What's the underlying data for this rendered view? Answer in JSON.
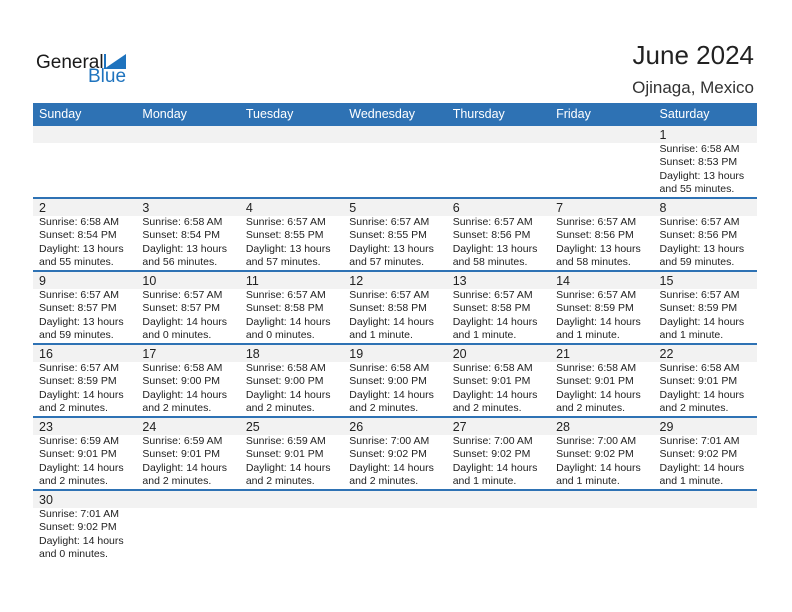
{
  "logo": {
    "line1": "General",
    "line2": "Blue",
    "accent": "#1e73be"
  },
  "title": "June 2024",
  "location": "Ojinaga, Mexico",
  "header_color": "#2e72b4",
  "weekdays": [
    "Sunday",
    "Monday",
    "Tuesday",
    "Wednesday",
    "Thursday",
    "Friday",
    "Saturday"
  ],
  "weeks": [
    [
      null,
      null,
      null,
      null,
      null,
      null,
      {
        "day": "1",
        "sunrise": "Sunrise: 6:58 AM",
        "sunset": "Sunset: 8:53 PM",
        "daylight": "Daylight: 13 hours",
        "minutes": "and 55 minutes."
      }
    ],
    [
      {
        "day": "2",
        "sunrise": "Sunrise: 6:58 AM",
        "sunset": "Sunset: 8:54 PM",
        "daylight": "Daylight: 13 hours",
        "minutes": "and 55 minutes."
      },
      {
        "day": "3",
        "sunrise": "Sunrise: 6:58 AM",
        "sunset": "Sunset: 8:54 PM",
        "daylight": "Daylight: 13 hours",
        "minutes": "and 56 minutes."
      },
      {
        "day": "4",
        "sunrise": "Sunrise: 6:57 AM",
        "sunset": "Sunset: 8:55 PM",
        "daylight": "Daylight: 13 hours",
        "minutes": "and 57 minutes."
      },
      {
        "day": "5",
        "sunrise": "Sunrise: 6:57 AM",
        "sunset": "Sunset: 8:55 PM",
        "daylight": "Daylight: 13 hours",
        "minutes": "and 57 minutes."
      },
      {
        "day": "6",
        "sunrise": "Sunrise: 6:57 AM",
        "sunset": "Sunset: 8:56 PM",
        "daylight": "Daylight: 13 hours",
        "minutes": "and 58 minutes."
      },
      {
        "day": "7",
        "sunrise": "Sunrise: 6:57 AM",
        "sunset": "Sunset: 8:56 PM",
        "daylight": "Daylight: 13 hours",
        "minutes": "and 58 minutes."
      },
      {
        "day": "8",
        "sunrise": "Sunrise: 6:57 AM",
        "sunset": "Sunset: 8:56 PM",
        "daylight": "Daylight: 13 hours",
        "minutes": "and 59 minutes."
      }
    ],
    [
      {
        "day": "9",
        "sunrise": "Sunrise: 6:57 AM",
        "sunset": "Sunset: 8:57 PM",
        "daylight": "Daylight: 13 hours",
        "minutes": "and 59 minutes."
      },
      {
        "day": "10",
        "sunrise": "Sunrise: 6:57 AM",
        "sunset": "Sunset: 8:57 PM",
        "daylight": "Daylight: 14 hours",
        "minutes": "and 0 minutes."
      },
      {
        "day": "11",
        "sunrise": "Sunrise: 6:57 AM",
        "sunset": "Sunset: 8:58 PM",
        "daylight": "Daylight: 14 hours",
        "minutes": "and 0 minutes."
      },
      {
        "day": "12",
        "sunrise": "Sunrise: 6:57 AM",
        "sunset": "Sunset: 8:58 PM",
        "daylight": "Daylight: 14 hours",
        "minutes": "and 1 minute."
      },
      {
        "day": "13",
        "sunrise": "Sunrise: 6:57 AM",
        "sunset": "Sunset: 8:58 PM",
        "daylight": "Daylight: 14 hours",
        "minutes": "and 1 minute."
      },
      {
        "day": "14",
        "sunrise": "Sunrise: 6:57 AM",
        "sunset": "Sunset: 8:59 PM",
        "daylight": "Daylight: 14 hours",
        "minutes": "and 1 minute."
      },
      {
        "day": "15",
        "sunrise": "Sunrise: 6:57 AM",
        "sunset": "Sunset: 8:59 PM",
        "daylight": "Daylight: 14 hours",
        "minutes": "and 1 minute."
      }
    ],
    [
      {
        "day": "16",
        "sunrise": "Sunrise: 6:57 AM",
        "sunset": "Sunset: 8:59 PM",
        "daylight": "Daylight: 14 hours",
        "minutes": "and 2 minutes."
      },
      {
        "day": "17",
        "sunrise": "Sunrise: 6:58 AM",
        "sunset": "Sunset: 9:00 PM",
        "daylight": "Daylight: 14 hours",
        "minutes": "and 2 minutes."
      },
      {
        "day": "18",
        "sunrise": "Sunrise: 6:58 AM",
        "sunset": "Sunset: 9:00 PM",
        "daylight": "Daylight: 14 hours",
        "minutes": "and 2 minutes."
      },
      {
        "day": "19",
        "sunrise": "Sunrise: 6:58 AM",
        "sunset": "Sunset: 9:00 PM",
        "daylight": "Daylight: 14 hours",
        "minutes": "and 2 minutes."
      },
      {
        "day": "20",
        "sunrise": "Sunrise: 6:58 AM",
        "sunset": "Sunset: 9:01 PM",
        "daylight": "Daylight: 14 hours",
        "minutes": "and 2 minutes."
      },
      {
        "day": "21",
        "sunrise": "Sunrise: 6:58 AM",
        "sunset": "Sunset: 9:01 PM",
        "daylight": "Daylight: 14 hours",
        "minutes": "and 2 minutes."
      },
      {
        "day": "22",
        "sunrise": "Sunrise: 6:58 AM",
        "sunset": "Sunset: 9:01 PM",
        "daylight": "Daylight: 14 hours",
        "minutes": "and 2 minutes."
      }
    ],
    [
      {
        "day": "23",
        "sunrise": "Sunrise: 6:59 AM",
        "sunset": "Sunset: 9:01 PM",
        "daylight": "Daylight: 14 hours",
        "minutes": "and 2 minutes."
      },
      {
        "day": "24",
        "sunrise": "Sunrise: 6:59 AM",
        "sunset": "Sunset: 9:01 PM",
        "daylight": "Daylight: 14 hours",
        "minutes": "and 2 minutes."
      },
      {
        "day": "25",
        "sunrise": "Sunrise: 6:59 AM",
        "sunset": "Sunset: 9:01 PM",
        "daylight": "Daylight: 14 hours",
        "minutes": "and 2 minutes."
      },
      {
        "day": "26",
        "sunrise": "Sunrise: 7:00 AM",
        "sunset": "Sunset: 9:02 PM",
        "daylight": "Daylight: 14 hours",
        "minutes": "and 2 minutes."
      },
      {
        "day": "27",
        "sunrise": "Sunrise: 7:00 AM",
        "sunset": "Sunset: 9:02 PM",
        "daylight": "Daylight: 14 hours",
        "minutes": "and 1 minute."
      },
      {
        "day": "28",
        "sunrise": "Sunrise: 7:00 AM",
        "sunset": "Sunset: 9:02 PM",
        "daylight": "Daylight: 14 hours",
        "minutes": "and 1 minute."
      },
      {
        "day": "29",
        "sunrise": "Sunrise: 7:01 AM",
        "sunset": "Sunset: 9:02 PM",
        "daylight": "Daylight: 14 hours",
        "minutes": "and 1 minute."
      }
    ],
    [
      {
        "day": "30",
        "sunrise": "Sunrise: 7:01 AM",
        "sunset": "Sunset: 9:02 PM",
        "daylight": "Daylight: 14 hours",
        "minutes": "and 0 minutes."
      }
    ]
  ]
}
